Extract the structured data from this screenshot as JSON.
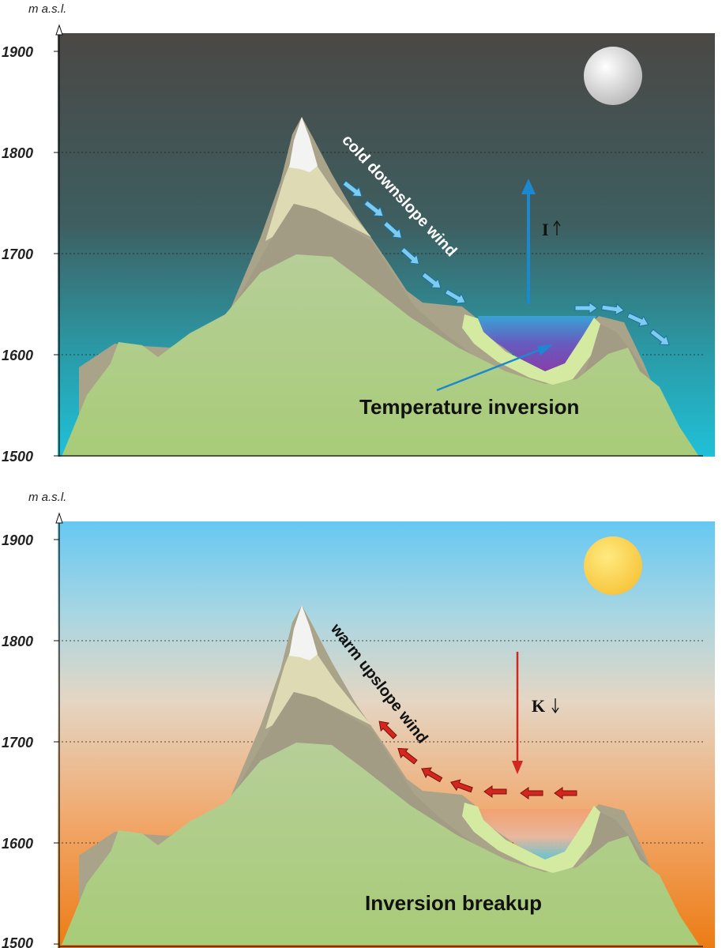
{
  "y_axis": {
    "unit": "m a.s.l.",
    "ticks": [
      "1900",
      "1800",
      "1700",
      "1600",
      "1500"
    ]
  },
  "night_panel": {
    "wind_label": "cold downslope wind",
    "flux_label": "I",
    "inversion_label": "Temperature inversion",
    "icons": [
      "moon-icon"
    ],
    "colors": {
      "sky_top": "#4a4845",
      "sky_bottom": "#20c0d8",
      "pool": "#8a3aa8",
      "wind_arrow": "#7ecbf0",
      "flux_arrow": "#1b88d0"
    }
  },
  "day_panel": {
    "wind_label": "warm upslope wind",
    "flux_label": "K",
    "breakup_label": "Inversion breakup",
    "icons": [
      "sun-icon"
    ],
    "colors": {
      "sky_top": "#66c8f2",
      "sky_bottom": "#ec7c14",
      "wind_arrow": "#d2261e",
      "flux_arrow": "#d2261e"
    }
  }
}
